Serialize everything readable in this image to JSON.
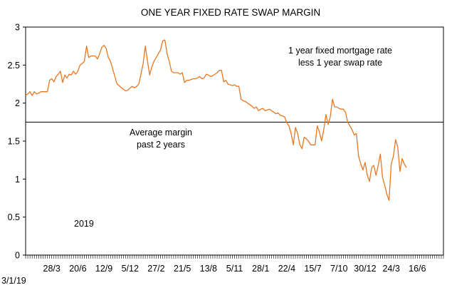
{
  "chart_data": {
    "type": "line",
    "title": "ONE YEAR FIXED RATE SWAP MARGIN",
    "xlabel": "",
    "ylabel": "",
    "ylim": [
      0,
      3
    ],
    "yticks": [
      "0",
      "0.5",
      "1",
      "1.5",
      "2",
      "2.5",
      "3"
    ],
    "xticks": [
      {
        "label": "3/1/19",
        "x": 0
      },
      {
        "label": "28/3",
        "x": 12
      },
      {
        "label": "20/6",
        "x": 24
      },
      {
        "label": "12/9",
        "x": 36
      },
      {
        "label": "5/12",
        "x": 48
      },
      {
        "label": "27/2",
        "x": 60
      },
      {
        "label": "21/5",
        "x": 72
      },
      {
        "label": "13/8",
        "x": 84
      },
      {
        "label": "5/11",
        "x": 96
      },
      {
        "label": "28/1",
        "x": 108
      },
      {
        "label": "22/4",
        "x": 120
      },
      {
        "label": "15/7",
        "x": 132
      },
      {
        "label": "7/10",
        "x": 144
      },
      {
        "label": "30/12",
        "x": 156
      },
      {
        "label": "24/3",
        "x": 168
      },
      {
        "label": "16/6",
        "x": 180
      }
    ],
    "xlim": [
      0,
      192
    ],
    "grid": false,
    "line_color": "#E87722",
    "series": [
      {
        "points": [
          [
            0,
            2.1
          ],
          [
            1,
            2.12
          ],
          [
            2,
            2.15
          ],
          [
            3,
            2.1
          ],
          [
            4,
            2.15
          ],
          [
            5,
            2.12
          ],
          [
            6,
            2.13
          ],
          [
            7,
            2.15
          ],
          [
            8,
            2.15
          ],
          [
            9,
            2.15
          ],
          [
            10,
            2.15
          ],
          [
            11,
            2.3
          ],
          [
            12,
            2.32
          ],
          [
            13,
            2.28
          ],
          [
            14,
            2.35
          ],
          [
            15,
            2.38
          ],
          [
            16,
            2.42
          ],
          [
            17,
            2.27
          ],
          [
            18,
            2.37
          ],
          [
            19,
            2.33
          ],
          [
            20,
            2.38
          ],
          [
            21,
            2.37
          ],
          [
            22,
            2.42
          ],
          [
            23,
            2.38
          ],
          [
            24,
            2.42
          ],
          [
            25,
            2.5
          ],
          [
            26,
            2.52
          ],
          [
            27,
            2.55
          ],
          [
            28,
            2.75
          ],
          [
            29,
            2.6
          ],
          [
            30,
            2.62
          ],
          [
            31,
            2.62
          ],
          [
            32,
            2.62
          ],
          [
            33,
            2.58
          ],
          [
            34,
            2.65
          ],
          [
            35,
            2.73
          ],
          [
            36,
            2.76
          ],
          [
            37,
            2.72
          ],
          [
            38,
            2.6
          ],
          [
            39,
            2.55
          ],
          [
            40,
            2.45
          ],
          [
            41,
            2.35
          ],
          [
            42,
            2.25
          ],
          [
            43,
            2.23
          ],
          [
            44,
            2.2
          ],
          [
            45,
            2.18
          ],
          [
            46,
            2.16
          ],
          [
            47,
            2.17
          ],
          [
            48,
            2.2
          ],
          [
            49,
            2.22
          ],
          [
            50,
            2.2
          ],
          [
            51,
            2.22
          ],
          [
            52,
            2.25
          ],
          [
            53,
            2.38
          ],
          [
            54,
            2.52
          ],
          [
            55,
            2.75
          ],
          [
            56,
            2.55
          ],
          [
            57,
            2.37
          ],
          [
            58,
            2.48
          ],
          [
            59,
            2.55
          ],
          [
            60,
            2.6
          ],
          [
            61,
            2.65
          ],
          [
            62,
            2.7
          ],
          [
            63,
            2.82
          ],
          [
            64,
            2.83
          ],
          [
            65,
            2.65
          ],
          [
            66,
            2.55
          ],
          [
            67,
            2.42
          ],
          [
            68,
            2.4
          ],
          [
            69,
            2.4
          ],
          [
            70,
            2.4
          ],
          [
            71,
            2.38
          ],
          [
            72,
            2.4
          ],
          [
            73,
            2.27
          ],
          [
            74,
            2.3
          ],
          [
            75,
            2.3
          ],
          [
            76,
            2.31
          ],
          [
            77,
            2.32
          ],
          [
            78,
            2.32
          ],
          [
            79,
            2.33
          ],
          [
            80,
            2.35
          ],
          [
            81,
            2.32
          ],
          [
            82,
            2.33
          ],
          [
            83,
            2.38
          ],
          [
            84,
            2.37
          ],
          [
            85,
            2.35
          ],
          [
            86,
            2.36
          ],
          [
            87,
            2.38
          ],
          [
            88,
            2.4
          ],
          [
            89,
            2.43
          ],
          [
            90,
            2.43
          ],
          [
            91,
            2.28
          ],
          [
            92,
            2.3
          ],
          [
            93,
            2.25
          ],
          [
            94,
            2.24
          ],
          [
            95,
            2.23
          ],
          [
            96,
            2.24
          ],
          [
            97,
            2.22
          ],
          [
            98,
            2.22
          ],
          [
            99,
            2.05
          ],
          [
            100,
            2.03
          ],
          [
            101,
            2.02
          ],
          [
            102,
            2.0
          ],
          [
            103,
            1.98
          ],
          [
            104,
            1.96
          ],
          [
            105,
            1.93
          ],
          [
            106,
            1.95
          ],
          [
            107,
            1.9
          ],
          [
            108,
            1.92
          ],
          [
            109,
            1.93
          ],
          [
            110,
            1.9
          ],
          [
            111,
            1.91
          ],
          [
            112,
            1.92
          ],
          [
            113,
            1.9
          ],
          [
            114,
            1.88
          ],
          [
            115,
            1.86
          ],
          [
            116,
            1.87
          ],
          [
            117,
            1.84
          ],
          [
            118,
            1.83
          ],
          [
            119,
            1.82
          ],
          [
            120,
            1.74
          ],
          [
            121,
            1.7
          ],
          [
            122,
            1.6
          ],
          [
            123,
            1.45
          ],
          [
            124,
            1.68
          ],
          [
            125,
            1.6
          ],
          [
            126,
            1.45
          ],
          [
            127,
            1.4
          ],
          [
            128,
            1.55
          ],
          [
            129,
            1.53
          ],
          [
            130,
            1.5
          ],
          [
            131,
            1.45
          ],
          [
            132,
            1.45
          ],
          [
            133,
            1.45
          ],
          [
            134,
            1.7
          ],
          [
            135,
            1.62
          ],
          [
            136,
            1.5
          ],
          [
            137,
            1.65
          ],
          [
            138,
            1.85
          ],
          [
            139,
            1.72
          ],
          [
            140,
            1.82
          ],
          [
            141,
            2.05
          ],
          [
            142,
            1.95
          ],
          [
            143,
            1.95
          ],
          [
            144,
            1.93
          ],
          [
            145,
            1.92
          ],
          [
            146,
            1.92
          ],
          [
            147,
            1.88
          ],
          [
            148,
            1.75
          ],
          [
            149,
            1.7
          ],
          [
            150,
            1.65
          ],
          [
            151,
            1.58
          ],
          [
            152,
            1.6
          ],
          [
            153,
            1.3
          ],
          [
            154,
            1.2
          ],
          [
            155,
            1.12
          ],
          [
            156,
            1.22
          ],
          [
            157,
            1.05
          ],
          [
            158,
            0.97
          ],
          [
            159,
            1.15
          ],
          [
            160,
            1.18
          ],
          [
            161,
            1.05
          ],
          [
            162,
            1.18
          ],
          [
            163,
            1.33
          ],
          [
            164,
            1.02
          ],
          [
            165,
            0.92
          ],
          [
            166,
            0.8
          ],
          [
            167,
            0.72
          ],
          [
            168,
            1.2
          ],
          [
            169,
            1.3
          ],
          [
            170,
            1.52
          ],
          [
            171,
            1.42
          ],
          [
            172,
            1.1
          ],
          [
            173,
            1.27
          ],
          [
            174,
            1.2
          ],
          [
            175,
            1.15
          ]
        ]
      }
    ],
    "reference_line": {
      "value": 1.75,
      "label_line1": "Average margin",
      "label_line2": "past 2 years"
    },
    "annotation": {
      "line1": "1 year fixed mortgage rate",
      "line2": "less 1 year swap rate"
    },
    "year_label": "2019"
  }
}
